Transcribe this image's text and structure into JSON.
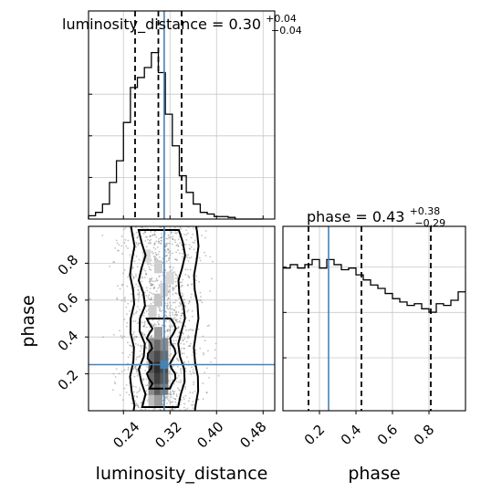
{
  "chart_data": [
    {
      "type": "histogram",
      "panel": "1d-marginal",
      "parameter": "luminosity_distance",
      "title": {
        "prefix": "luminosity_distance = 0.30",
        "plus": "+0.04",
        "minus": "−0.04"
      },
      "quantiles": [
        0.26,
        0.3,
        0.34
      ],
      "truth": 0.31,
      "xlim": [
        0.18,
        0.5
      ],
      "grid": true,
      "bins": {
        "edges": [
          0.18,
          0.192,
          0.204,
          0.216,
          0.228,
          0.24,
          0.252,
          0.264,
          0.276,
          0.288,
          0.3,
          0.312,
          0.324,
          0.336,
          0.348,
          0.36,
          0.372,
          0.384,
          0.396,
          0.408,
          0.42,
          0.432,
          0.444,
          0.456,
          0.468,
          0.48
        ],
        "values": [
          0.02,
          0.04,
          0.09,
          0.22,
          0.35,
          0.58,
          0.79,
          0.85,
          0.91,
          1.0,
          0.88,
          0.63,
          0.44,
          0.26,
          0.16,
          0.09,
          0.04,
          0.03,
          0.015,
          0.015,
          0.01,
          0.0,
          0.0,
          0.0,
          0.0
        ]
      }
    },
    {
      "type": "histogram",
      "panel": "1d-marginal",
      "parameter": "phase",
      "title": {
        "prefix": "phase = 0.43",
        "plus": "+0.38",
        "minus": "−0.29"
      },
      "quantiles": [
        0.14,
        0.43,
        0.81
      ],
      "truth": 0.25,
      "xlim": [
        0.0,
        1.0
      ],
      "grid": true,
      "bins": {
        "edges": [
          0.0,
          0.04,
          0.08,
          0.12,
          0.16,
          0.2,
          0.24,
          0.28,
          0.32,
          0.36,
          0.4,
          0.44,
          0.48,
          0.52,
          0.56,
          0.6,
          0.64,
          0.68,
          0.72,
          0.76,
          0.8,
          0.84,
          0.88,
          0.92,
          0.96,
          1.0
        ],
        "values": [
          0.84,
          0.86,
          0.84,
          0.86,
          0.89,
          0.84,
          0.89,
          0.86,
          0.83,
          0.84,
          0.8,
          0.77,
          0.74,
          0.72,
          0.69,
          0.66,
          0.64,
          0.62,
          0.63,
          0.6,
          0.58,
          0.63,
          0.62,
          0.65,
          0.7
        ]
      }
    },
    {
      "type": "scatter",
      "panel": "2d-contour",
      "x_parameter": "luminosity_distance",
      "y_parameter": "phase",
      "xlabel": "luminosity_distance",
      "ylabel": "phase",
      "xlim": [
        0.18,
        0.5
      ],
      "ylim": [
        0.0,
        1.0
      ],
      "x_ticks": [
        "0.24",
        "0.32",
        "0.40",
        "0.48"
      ],
      "y_ticks": [
        "0.2",
        "0.4",
        "0.6",
        "0.8"
      ],
      "phase_ticks": [
        "0.2",
        "0.4",
        "0.6",
        "0.8"
      ],
      "phase_xlabel": "phase",
      "truth": [
        0.31,
        0.25
      ],
      "contours": [
        {
          "level": "outer",
          "x_range": [
            0.255,
            0.365
          ],
          "y_range": [
            0.0,
            1.0
          ]
        },
        {
          "level": "middle",
          "x_range": [
            0.272,
            0.34
          ],
          "y_range": [
            0.0,
            1.0
          ]
        },
        {
          "level": "inner",
          "x_range": [
            0.285,
            0.325
          ],
          "y_range": [
            0.12,
            0.5
          ]
        }
      ]
    }
  ]
}
